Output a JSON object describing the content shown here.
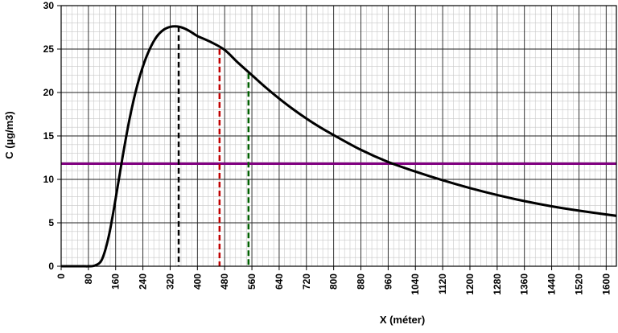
{
  "chart_data": {
    "type": "line",
    "title": "",
    "xlabel": "X (méter)",
    "ylabel": "C (µg/m3)",
    "xlim": [
      0,
      1630
    ],
    "ylim": [
      0,
      30
    ],
    "x_major_ticks": [
      0,
      80,
      160,
      240,
      320,
      400,
      480,
      560,
      640,
      720,
      800,
      880,
      960,
      1040,
      1120,
      1200,
      1280,
      1360,
      1440,
      1520,
      1600
    ],
    "y_major_ticks": [
      0,
      5,
      10,
      15,
      20,
      25,
      30
    ],
    "x_minor_step": 16,
    "y_minor_step": 1,
    "grid": true,
    "legend": "none",
    "series": [
      {
        "color": "#000000",
        "x": [
          0,
          60,
          80,
          100,
          120,
          140,
          160,
          180,
          200,
          220,
          240,
          260,
          280,
          300,
          320,
          340,
          360,
          380,
          400,
          440,
          480,
          520,
          560,
          600,
          640,
          680,
          720,
          760,
          800,
          880,
          960,
          1040,
          1120,
          1200,
          1280,
          1360,
          1440,
          1520,
          1630
        ],
        "y": [
          0,
          0,
          0,
          0.1,
          0.8,
          3.5,
          7.8,
          12.5,
          16.8,
          20.3,
          23.0,
          25.0,
          26.4,
          27.2,
          27.55,
          27.6,
          27.4,
          27.0,
          26.5,
          25.8,
          24.9,
          23.4,
          22.0,
          20.6,
          19.3,
          18.1,
          17.0,
          16.0,
          15.1,
          13.4,
          12.0,
          10.9,
          9.9,
          9.0,
          8.2,
          7.5,
          6.9,
          6.4,
          5.8
        ]
      }
    ],
    "reference_lines": [
      {
        "orientation": "horizontal",
        "y": 11.8,
        "color": "#800080",
        "style": "solid"
      },
      {
        "orientation": "vertical",
        "x": 345,
        "y_top": 27.6,
        "color": "#000000",
        "style": "dashed"
      },
      {
        "orientation": "vertical",
        "x": 465,
        "y_top": 25.0,
        "color": "#c00000",
        "style": "dashed"
      },
      {
        "orientation": "vertical",
        "x": 550,
        "y_top": 22.2,
        "color": "#006000",
        "style": "dashed"
      }
    ]
  }
}
